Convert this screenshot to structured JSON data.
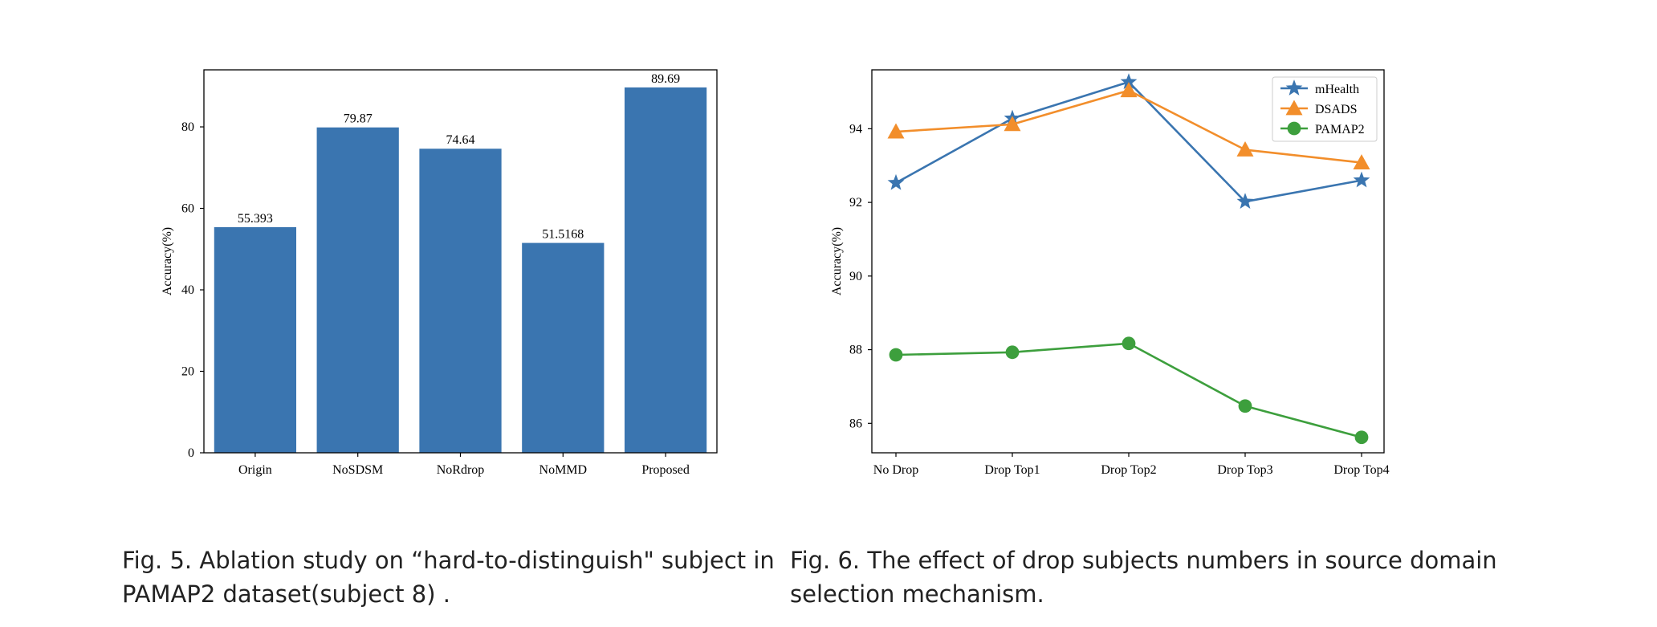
{
  "chart_data": [
    {
      "type": "bar",
      "categories": [
        "Origin",
        "NoSDSM",
        "NoRdrop",
        "NoMMD",
        "Proposed"
      ],
      "values": [
        55.393,
        79.87,
        74.64,
        51.5168,
        89.69
      ],
      "value_labels": [
        "55.393",
        "79.87",
        "74.64",
        "51.5168",
        "89.69"
      ],
      "ylabel": "Accuracy(%)",
      "ylim": [
        0,
        94
      ],
      "yticks": [
        0,
        20,
        40,
        60,
        80
      ],
      "color": "#3a75b0",
      "grid": false
    },
    {
      "type": "line",
      "categories": [
        "No Drop",
        "Drop Top1",
        "Drop Top2",
        "Drop Top3",
        "Drop Top4"
      ],
      "ylabel": "Accuracy(%)",
      "ylim": [
        85.2,
        95.6
      ],
      "yticks": [
        86,
        88,
        90,
        92,
        94
      ],
      "legend_position": "top-right",
      "grid": false,
      "series": [
        {
          "name": "mHealth",
          "values": [
            92.53,
            94.28,
            95.27,
            92.02,
            92.6
          ],
          "color": "#3a75b0",
          "marker": "star"
        },
        {
          "name": "DSADS",
          "values": [
            93.92,
            94.12,
            95.04,
            93.43,
            93.08
          ],
          "color": "#f28e2b",
          "marker": "triangle"
        },
        {
          "name": "PAMAP2",
          "values": [
            87.86,
            87.93,
            88.17,
            86.47,
            85.62
          ],
          "color": "#3d9f3d",
          "marker": "circle"
        }
      ]
    }
  ],
  "captions": {
    "fig5_line1": "Fig. 5.  Ablation study on “hard-to-distinguish\" subject in",
    "fig5_line2": "PAMAP2 dataset(subject 8) .",
    "fig6_line1": "Fig. 6.  The effect of drop subjects numbers in source domain",
    "fig6_line2": "selection mechanism."
  }
}
